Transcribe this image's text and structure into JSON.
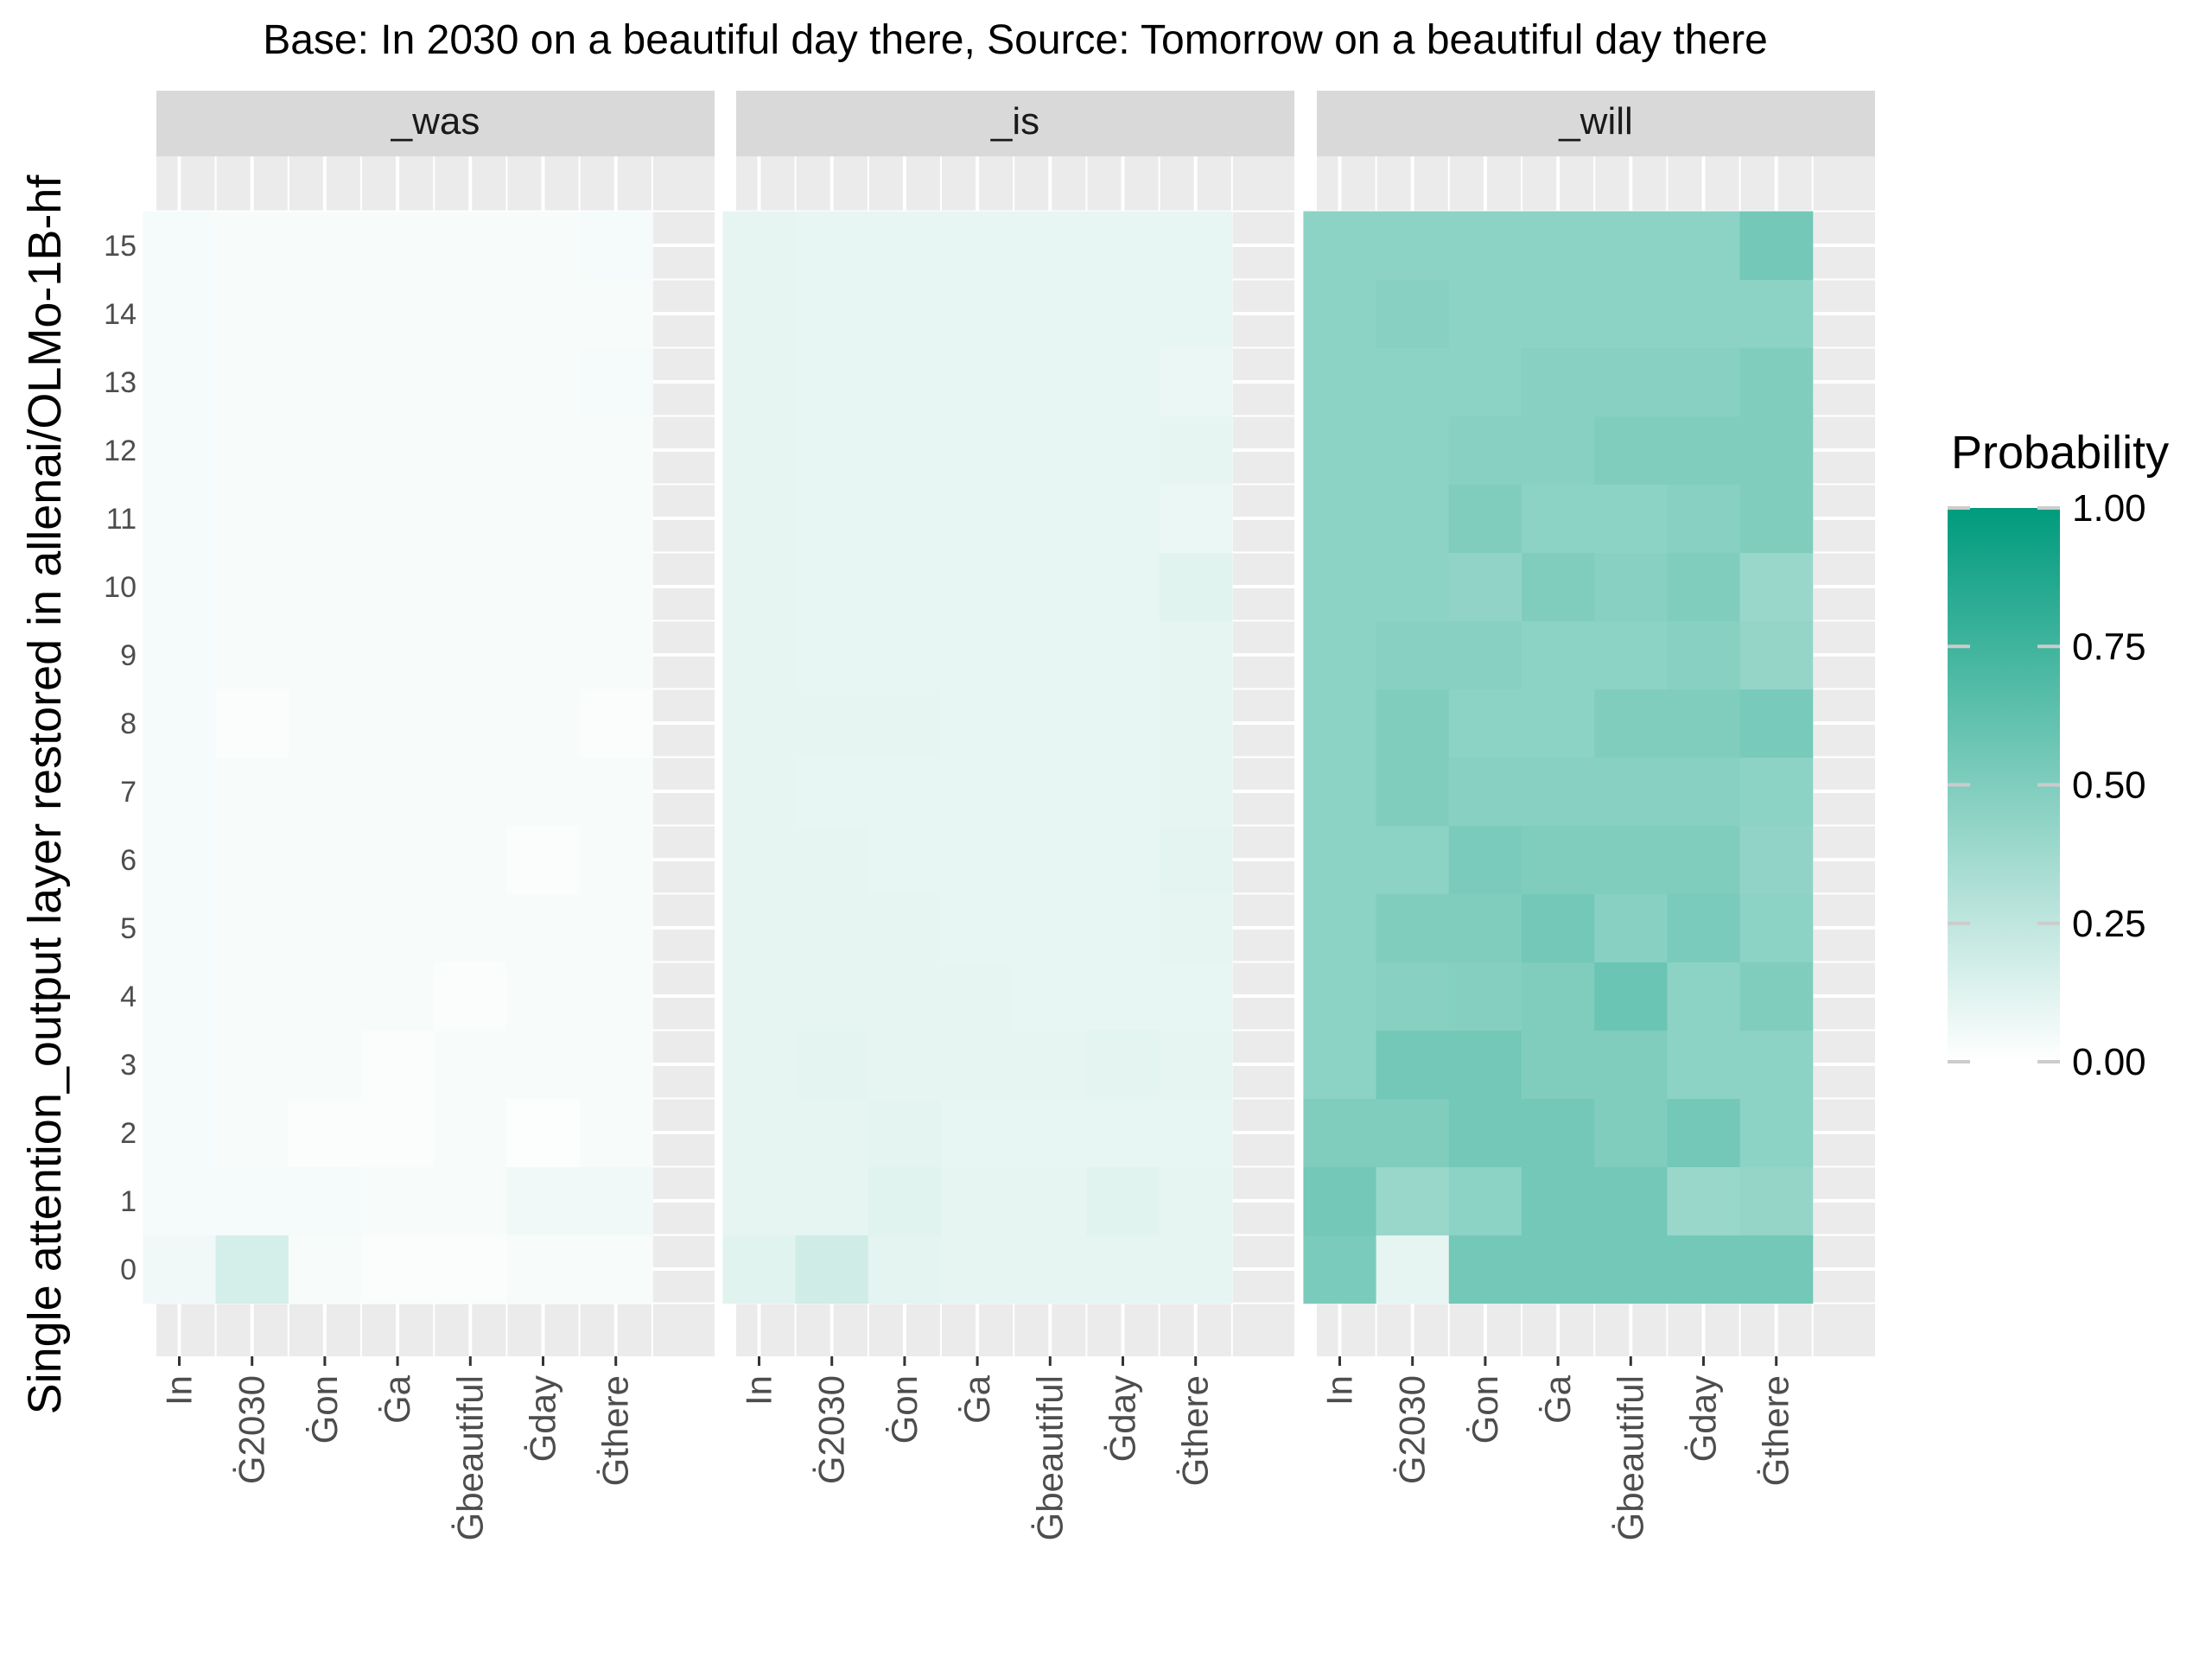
{
  "chart_data": {
    "type": "heatmap",
    "title": "Base: In 2030 on a beautiful day there, Source: Tomorrow on a beautiful day there",
    "xlabel": "",
    "ylabel": "Single attention_output layer restored in allenai/OLMo-1B-hf",
    "x_tokens": [
      "In",
      "Ġ2030",
      "Ġon",
      "Ġa",
      "Ġbeautiful",
      "Ġday",
      "Ġthere"
    ],
    "layers": [
      0,
      1,
      2,
      3,
      4,
      5,
      6,
      7,
      8,
      9,
      10,
      11,
      12,
      13,
      14,
      15
    ],
    "legend": {
      "title": "Probability",
      "ticks": [
        "0.00",
        "0.25",
        "0.50",
        "0.75",
        "1.00"
      ],
      "tick_values": [
        0,
        0.25,
        0.5,
        0.75,
        1
      ],
      "low_color": "#ffffff",
      "high_color": "#009b7d",
      "placement": "right"
    },
    "colors": {
      "panel_bg": "#ebebeb",
      "strip_bg": "#d9d9d9",
      "grid": "#ffffff"
    },
    "panels": [
      {
        "name": "_was",
        "values": [
          [
            0.06,
            0.17,
            0.03,
            0.02,
            0.02,
            0.03,
            0.03
          ],
          [
            0.04,
            0.04,
            0.04,
            0.03,
            0.03,
            0.06,
            0.06
          ],
          [
            0.04,
            0.03,
            0.02,
            0.02,
            0.03,
            0.01,
            0.03
          ],
          [
            0.04,
            0.03,
            0.03,
            0.02,
            0.03,
            0.03,
            0.03
          ],
          [
            0.04,
            0.03,
            0.03,
            0.03,
            0.02,
            0.03,
            0.03
          ],
          [
            0.04,
            0.03,
            0.03,
            0.03,
            0.03,
            0.03,
            0.03
          ],
          [
            0.04,
            0.03,
            0.03,
            0.03,
            0.03,
            0.02,
            0.03
          ],
          [
            0.04,
            0.03,
            0.03,
            0.03,
            0.03,
            0.03,
            0.03
          ],
          [
            0.04,
            0.02,
            0.03,
            0.03,
            0.03,
            0.03,
            0.02
          ],
          [
            0.04,
            0.03,
            0.03,
            0.03,
            0.03,
            0.03,
            0.03
          ],
          [
            0.04,
            0.03,
            0.03,
            0.03,
            0.03,
            0.03,
            0.03
          ],
          [
            0.04,
            0.03,
            0.03,
            0.03,
            0.03,
            0.03,
            0.03
          ],
          [
            0.04,
            0.03,
            0.03,
            0.03,
            0.03,
            0.03,
            0.03
          ],
          [
            0.04,
            0.03,
            0.03,
            0.03,
            0.03,
            0.03,
            0.04
          ],
          [
            0.04,
            0.03,
            0.03,
            0.03,
            0.03,
            0.03,
            0.03
          ],
          [
            0.04,
            0.03,
            0.03,
            0.03,
            0.03,
            0.03,
            0.04
          ]
        ]
      },
      {
        "name": "_is",
        "values": [
          [
            0.12,
            0.19,
            0.11,
            0.1,
            0.1,
            0.1,
            0.1
          ],
          [
            0.1,
            0.1,
            0.12,
            0.1,
            0.1,
            0.12,
            0.1
          ],
          [
            0.1,
            0.1,
            0.11,
            0.09,
            0.09,
            0.09,
            0.09
          ],
          [
            0.1,
            0.11,
            0.1,
            0.1,
            0.1,
            0.11,
            0.1
          ],
          [
            0.1,
            0.1,
            0.1,
            0.1,
            0.09,
            0.09,
            0.09
          ],
          [
            0.1,
            0.1,
            0.1,
            0.09,
            0.09,
            0.09,
            0.1
          ],
          [
            0.1,
            0.1,
            0.09,
            0.09,
            0.09,
            0.09,
            0.11
          ],
          [
            0.1,
            0.09,
            0.09,
            0.09,
            0.09,
            0.09,
            0.1
          ],
          [
            0.1,
            0.1,
            0.1,
            0.09,
            0.09,
            0.09,
            0.1
          ],
          [
            0.1,
            0.09,
            0.09,
            0.09,
            0.09,
            0.09,
            0.1
          ],
          [
            0.1,
            0.09,
            0.09,
            0.09,
            0.09,
            0.09,
            0.12
          ],
          [
            0.1,
            0.09,
            0.09,
            0.09,
            0.09,
            0.09,
            0.08
          ],
          [
            0.1,
            0.09,
            0.09,
            0.09,
            0.09,
            0.09,
            0.1
          ],
          [
            0.1,
            0.09,
            0.09,
            0.09,
            0.09,
            0.09,
            0.08
          ],
          [
            0.1,
            0.09,
            0.09,
            0.09,
            0.09,
            0.09,
            0.09
          ],
          [
            0.1,
            0.09,
            0.09,
            0.09,
            0.09,
            0.09,
            0.09
          ]
        ]
      },
      {
        "name": "_will",
        "values": [
          [
            0.52,
            0.1,
            0.55,
            0.55,
            0.55,
            0.55,
            0.55
          ],
          [
            0.55,
            0.4,
            0.45,
            0.55,
            0.55,
            0.4,
            0.42
          ],
          [
            0.5,
            0.5,
            0.55,
            0.55,
            0.5,
            0.55,
            0.45
          ],
          [
            0.45,
            0.55,
            0.55,
            0.5,
            0.5,
            0.45,
            0.45
          ],
          [
            0.45,
            0.47,
            0.48,
            0.5,
            0.58,
            0.45,
            0.5
          ],
          [
            0.45,
            0.5,
            0.5,
            0.55,
            0.47,
            0.52,
            0.45
          ],
          [
            0.45,
            0.45,
            0.52,
            0.5,
            0.5,
            0.5,
            0.43
          ],
          [
            0.45,
            0.5,
            0.47,
            0.47,
            0.47,
            0.47,
            0.45
          ],
          [
            0.45,
            0.5,
            0.45,
            0.45,
            0.5,
            0.5,
            0.53
          ],
          [
            0.45,
            0.47,
            0.47,
            0.45,
            0.45,
            0.47,
            0.42
          ],
          [
            0.45,
            0.45,
            0.43,
            0.5,
            0.47,
            0.5,
            0.4
          ],
          [
            0.45,
            0.45,
            0.5,
            0.45,
            0.45,
            0.47,
            0.5
          ],
          [
            0.45,
            0.45,
            0.47,
            0.47,
            0.5,
            0.5,
            0.5
          ],
          [
            0.45,
            0.45,
            0.45,
            0.47,
            0.47,
            0.47,
            0.5
          ],
          [
            0.45,
            0.47,
            0.45,
            0.45,
            0.45,
            0.45,
            0.45
          ],
          [
            0.45,
            0.45,
            0.45,
            0.45,
            0.45,
            0.45,
            0.55
          ]
        ]
      }
    ]
  }
}
